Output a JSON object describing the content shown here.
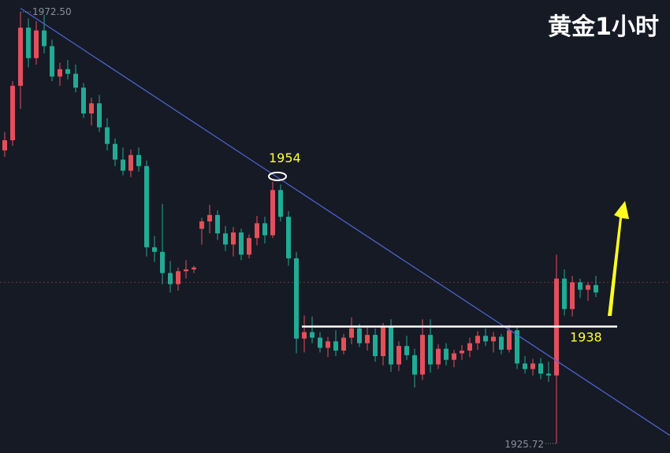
{
  "chart_data": {
    "type": "candlestick",
    "title": "黄金1小时",
    "up_color": "#e2505a",
    "down_color": "#22ab94",
    "ylim": [
      1924.7,
      1973.8
    ],
    "candles": [
      [
        1957.5,
        1959.5,
        1956.8,
        1958.6
      ],
      [
        1958.6,
        1965,
        1958,
        1964.5
      ],
      [
        1964.5,
        1972.5,
        1962,
        1970.8
      ],
      [
        1970.8,
        1971.8,
        1966.5,
        1967.5
      ],
      [
        1967.5,
        1971.5,
        1966.8,
        1970.5
      ],
      [
        1970.5,
        1972.2,
        1968,
        1968.8
      ],
      [
        1968.8,
        1969.5,
        1965,
        1965.5
      ],
      [
        1965.5,
        1967,
        1964.5,
        1966.3
      ],
      [
        1966.3,
        1967.3,
        1965.2,
        1965.8
      ],
      [
        1965.8,
        1966.8,
        1963.8,
        1964.3
      ],
      [
        1964.3,
        1964.8,
        1961,
        1961.5
      ],
      [
        1961.5,
        1963.2,
        1960.2,
        1962.6
      ],
      [
        1962.6,
        1963.5,
        1959.5,
        1960
      ],
      [
        1960,
        1961,
        1957.5,
        1958.2
      ],
      [
        1958.2,
        1958.8,
        1955.8,
        1956.5
      ],
      [
        1956.5,
        1957.8,
        1954.8,
        1955.3
      ],
      [
        1955.3,
        1957.6,
        1954.6,
        1957
      ],
      [
        1957,
        1957.8,
        1955.2,
        1955.8
      ],
      [
        1955.8,
        1956.4,
        1946,
        1947
      ],
      [
        1947,
        1948.2,
        1945.4,
        1946.5
      ],
      [
        1946.5,
        1951.7,
        1943,
        1944.2
      ],
      [
        1944.2,
        1945.5,
        1942.1,
        1943
      ],
      [
        1943,
        1944.8,
        1942.3,
        1944.4
      ],
      [
        1944.4,
        1945.6,
        1943.6,
        1944.6
      ],
      [
        1944.6,
        1945,
        1944.2,
        1944.8
      ],
      [
        1949,
        1950.2,
        1947.3,
        1949.8
      ],
      [
        1949.8,
        1951.6,
        1948.5,
        1950.5
      ],
      [
        1950.5,
        1951,
        1947.8,
        1948.5
      ],
      [
        1948.5,
        1949.3,
        1946.6,
        1947.3
      ],
      [
        1947.3,
        1949.2,
        1946,
        1948.6
      ],
      [
        1948.6,
        1949,
        1945.6,
        1946.2
      ],
      [
        1946.2,
        1948.4,
        1945.8,
        1948
      ],
      [
        1948,
        1950.4,
        1947.2,
        1949.6
      ],
      [
        1949.6,
        1950.3,
        1947.4,
        1948.3
      ],
      [
        1948.3,
        1954.1,
        1948,
        1953.2
      ],
      [
        1953.2,
        1953.8,
        1949.8,
        1950.3
      ],
      [
        1950.3,
        1950.9,
        1945,
        1945.8
      ],
      [
        1945.8,
        1946.5,
        1935.5,
        1937.1
      ],
      [
        1937.1,
        1939.6,
        1935.6,
        1937.8
      ],
      [
        1937.8,
        1939.5,
        1936.6,
        1937.2
      ],
      [
        1937.2,
        1937.8,
        1935.6,
        1936.1
      ],
      [
        1936.1,
        1937.3,
        1935.1,
        1936.8
      ],
      [
        1936.8,
        1938,
        1935.2,
        1935.8
      ],
      [
        1935.8,
        1937.6,
        1935.4,
        1937.2
      ],
      [
        1937.2,
        1939.4,
        1936.5,
        1938.2
      ],
      [
        1938.2,
        1938.7,
        1936.2,
        1936.6
      ],
      [
        1936.6,
        1938.4,
        1935.8,
        1937.5
      ],
      [
        1937.5,
        1938.2,
        1934.6,
        1935.2
      ],
      [
        1935.2,
        1938.8,
        1934.2,
        1938.4
      ],
      [
        1938.4,
        1939.2,
        1933.5,
        1934.3
      ],
      [
        1934.3,
        1936.8,
        1933.6,
        1936.3
      ],
      [
        1936.3,
        1937.4,
        1934.8,
        1935.3
      ],
      [
        1935.3,
        1936,
        1931.8,
        1933.2
      ],
      [
        1933.2,
        1939.2,
        1932.6,
        1937.5
      ],
      [
        1937.5,
        1939.2,
        1933.4,
        1934.3
      ],
      [
        1934.3,
        1936.5,
        1933.8,
        1936
      ],
      [
        1936,
        1936.6,
        1934.2,
        1934.8
      ],
      [
        1934.8,
        1935.9,
        1934,
        1935.5
      ],
      [
        1935.5,
        1936.4,
        1934.8,
        1935.8
      ],
      [
        1935.8,
        1937.2,
        1935.1,
        1936.6
      ],
      [
        1936.6,
        1937.9,
        1935.9,
        1937.4
      ],
      [
        1937.4,
        1938.2,
        1936.3,
        1936.8
      ],
      [
        1936.8,
        1937.8,
        1935.6,
        1937.3
      ],
      [
        1937.3,
        1937.6,
        1935.4,
        1935.9
      ],
      [
        1935.9,
        1938.6,
        1935.6,
        1938
      ],
      [
        1938,
        1938.3,
        1933.8,
        1934.4
      ],
      [
        1934.4,
        1935.2,
        1933.3,
        1933.8
      ],
      [
        1933.8,
        1934.9,
        1933.1,
        1934.4
      ],
      [
        1934.4,
        1935,
        1932.7,
        1933.3
      ],
      [
        1933.3,
        1934.6,
        1932.4,
        1933.1
      ],
      [
        1933.1,
        1946.2,
        1925.72,
        1943.6
      ],
      [
        1943.6,
        1944.6,
        1939.6,
        1940.3
      ],
      [
        1940.3,
        1943.9,
        1939.5,
        1943.2
      ],
      [
        1943.2,
        1943.6,
        1941.5,
        1942.4
      ],
      [
        1942.4,
        1943.2,
        1941.2,
        1942.9
      ],
      [
        1942.9,
        1943.9,
        1941.6,
        1942.1
      ]
    ],
    "high_label": {
      "value": 1972.5,
      "label": "1972.50"
    },
    "low_label": {
      "value": 1925.72,
      "label": "1925.72"
    },
    "price_line": 1943.2,
    "trendline": {
      "color": "#4f68d6",
      "start": [
        2,
        1972.9
      ],
      "end": [
        84.4,
        1926.6
      ]
    },
    "support_line": {
      "text": "1938",
      "value": 1938.4,
      "start": 37.7,
      "end": 77.7
    },
    "peak_annotation": {
      "text": "1954",
      "value": 1954,
      "index": 34
    }
  }
}
